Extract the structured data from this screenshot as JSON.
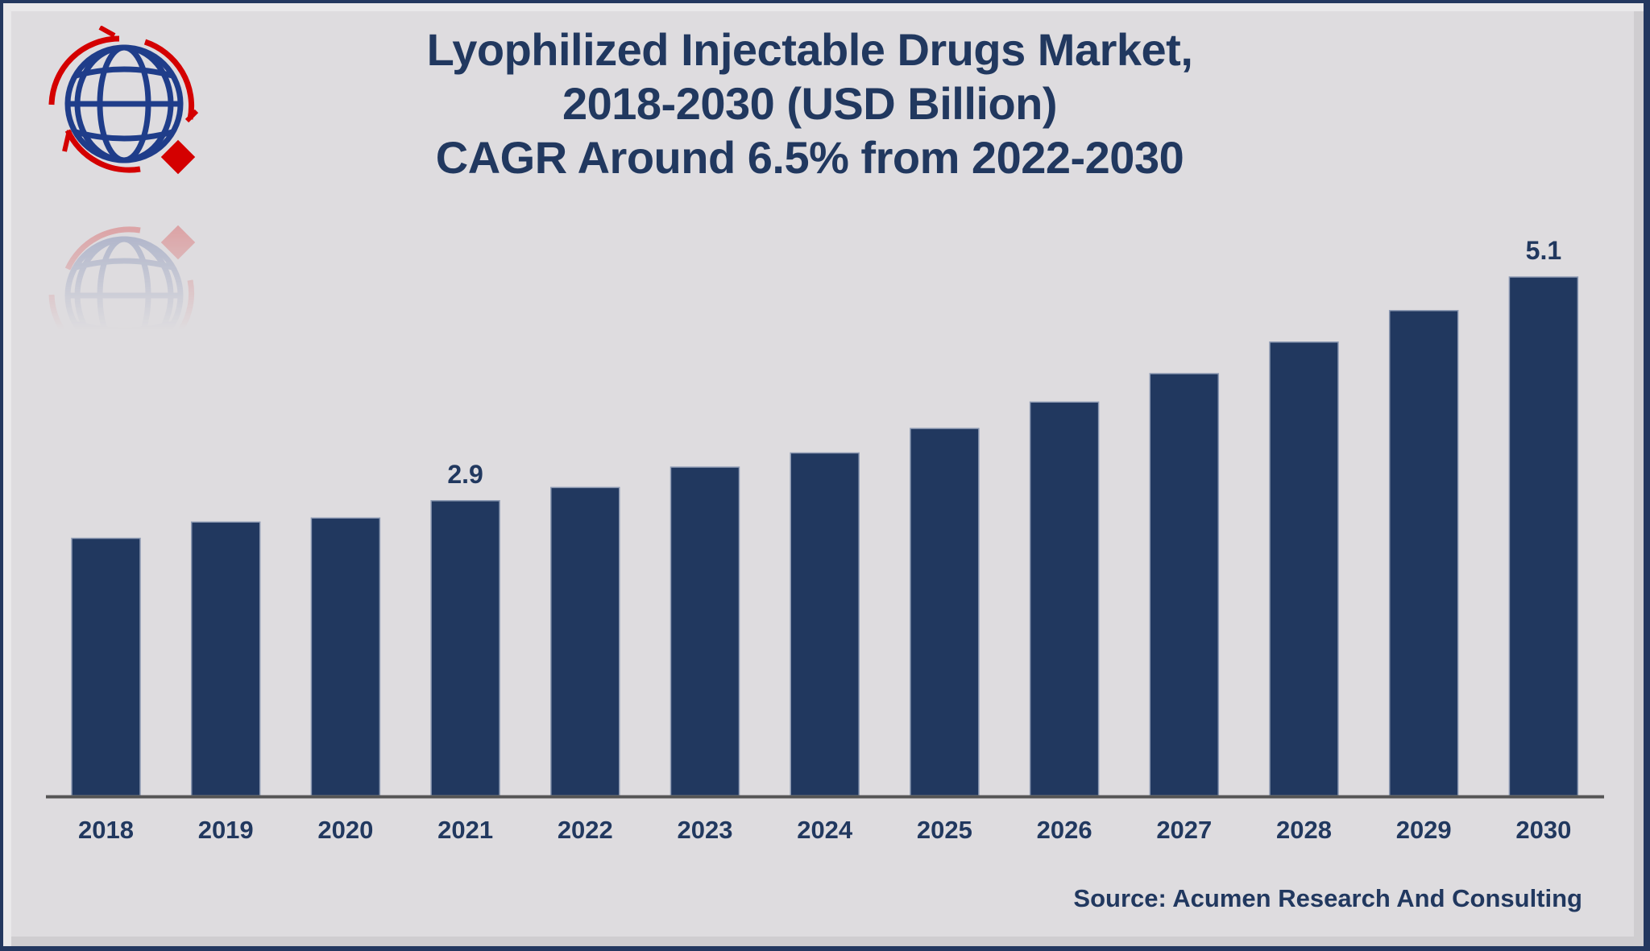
{
  "title": {
    "lines": [
      "Lyophilized Injectable Drugs Market,",
      "2018-2030 (USD Billion)",
      "CAGR Around 6.5% from 2022-2030"
    ]
  },
  "logo": {
    "icon": "globe-with-rotating-arrows-icon",
    "colors": {
      "globe": "#1f3d8a",
      "arrows": "#d40000"
    }
  },
  "source": "Source: Acumen Research And Consulting",
  "colors": {
    "bar": "#21385f",
    "text": "#21385f",
    "axis": "#555555",
    "background": "#dedcdf",
    "frame": "#23375f"
  },
  "chart_data": {
    "type": "bar",
    "title": "Lyophilized Injectable Drugs Market, 2018-2030 (USD Billion) CAGR Around 6.5% from 2022-2030",
    "xlabel": "",
    "ylabel": "",
    "categories": [
      "2018",
      "2019",
      "2020",
      "2021",
      "2022",
      "2023",
      "2024",
      "2025",
      "2026",
      "2027",
      "2028",
      "2029",
      "2030"
    ],
    "values": [
      2.53,
      2.69,
      2.73,
      2.9,
      3.03,
      3.23,
      3.37,
      3.61,
      3.87,
      4.15,
      4.46,
      4.77,
      5.1
    ],
    "data_labels": {
      "2021": "2.9",
      "2030": "5.1"
    },
    "ylim": [
      0,
      5.1
    ],
    "grid": false,
    "legend": "none",
    "y_axis_visible": false
  }
}
